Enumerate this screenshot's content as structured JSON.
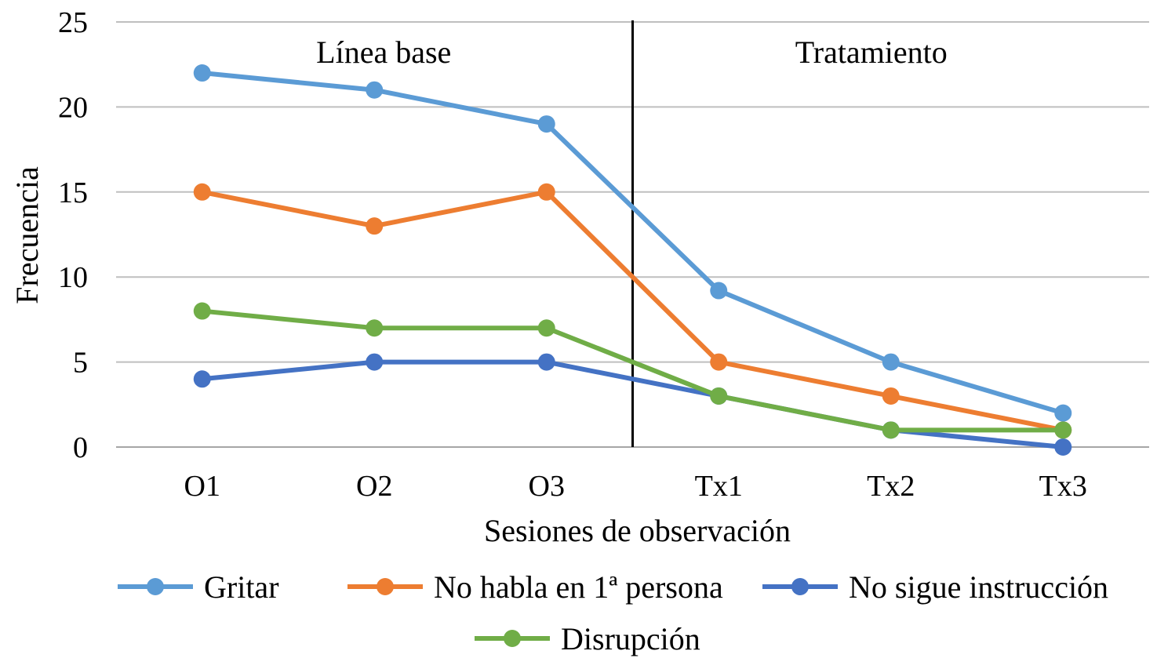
{
  "chart_data": {
    "type": "line",
    "title": "",
    "xlabel": "Sesiones de observación",
    "ylabel": "Frecuencia",
    "categories": [
      "O1",
      "O2",
      "O3",
      "Tx1",
      "Tx2",
      "Tx3"
    ],
    "ylim": [
      0,
      25
    ],
    "yticks": [
      0,
      5,
      10,
      15,
      20,
      25
    ],
    "grid": true,
    "legend_position": "bottom",
    "phase_divider_after": "O3",
    "phases": [
      {
        "label": "Línea base"
      },
      {
        "label": "Tratamiento"
      }
    ],
    "series": [
      {
        "name": "Gritar",
        "color": "#5B9BD5",
        "values": [
          22,
          21,
          19,
          9.2,
          5,
          2
        ]
      },
      {
        "name": "No habla en 1ª persona",
        "color": "#ED7D31",
        "values": [
          15,
          13,
          15,
          5,
          3,
          1
        ]
      },
      {
        "name": "No sigue instrucción",
        "color": "#4472C4",
        "values": [
          4,
          5,
          5,
          3,
          1,
          0
        ]
      },
      {
        "name": "Disrupción",
        "color": "#70AD47",
        "values": [
          8,
          7,
          7,
          3,
          1,
          1
        ]
      }
    ]
  }
}
